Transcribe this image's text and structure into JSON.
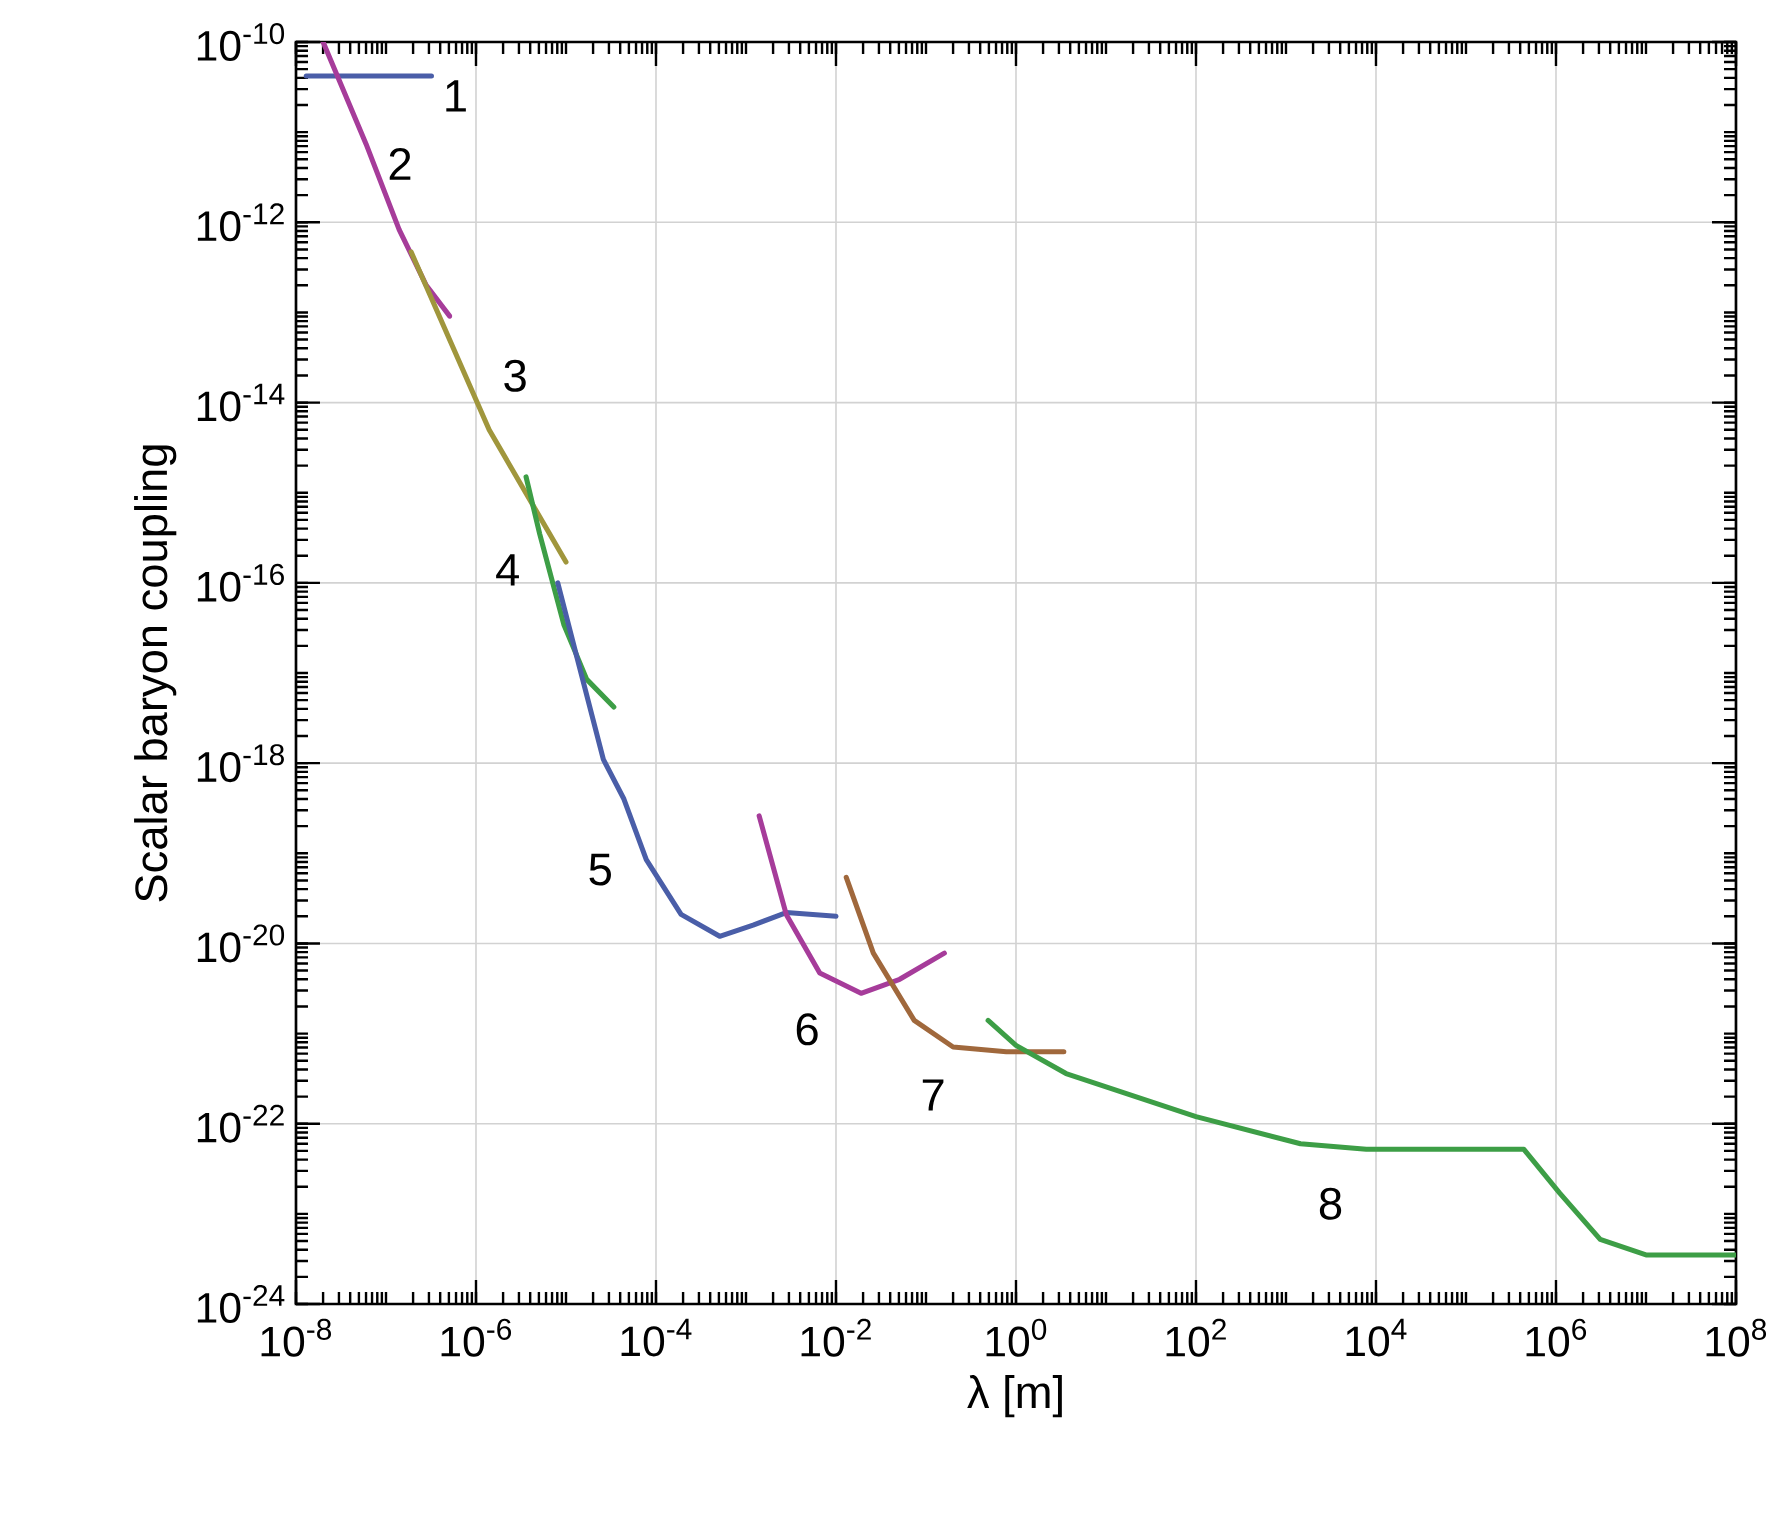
{
  "chart_data": {
    "type": "line",
    "xlabel": "λ [m]",
    "ylabel": "Scalar baryon coupling",
    "log": "xy",
    "grid": true,
    "legend": false,
    "line_style": "solid",
    "marker": "none",
    "xlim": [
      1e-08,
      100000000.0
    ],
    "ylim": [
      1e-24,
      1e-10
    ],
    "xticks": [
      {
        "value": 1e-08,
        "label": "10$^{-8}$"
      },
      {
        "value": 1e-06,
        "label": "10$^{-6}$"
      },
      {
        "value": 0.0001,
        "label": "10$^{-4}$"
      },
      {
        "value": 0.01,
        "label": "10$^{-2}$"
      },
      {
        "value": 1,
        "label": "10$^{0}$"
      },
      {
        "value": 100.0,
        "label": "10$^{2}$"
      },
      {
        "value": 10000.0,
        "label": "10$^{4}$"
      },
      {
        "value": 1000000.0,
        "label": "10$^{6}$"
      },
      {
        "value": 100000000.0,
        "label": "10$^{8}$"
      }
    ],
    "yticks": [
      {
        "value": 1e-24,
        "label": "10$^{-24}$"
      },
      {
        "value": 1e-22,
        "label": "10$^{-22}$"
      },
      {
        "value": 1e-20,
        "label": "10$^{-20}$"
      },
      {
        "value": 1e-18,
        "label": "10$^{-18}$"
      },
      {
        "value": 1e-16,
        "label": "10$^{-16}$"
      },
      {
        "value": 1e-14,
        "label": "10$^{-14}$"
      },
      {
        "value": 1e-12,
        "label": "10$^{-12}$"
      },
      {
        "value": 1e-10,
        "label": "10$^{-10}$"
      }
    ],
    "series": [
      {
        "name": "1",
        "color": "#4a5ea8",
        "x": [
          1.3e-08,
          3.2e-07
        ],
        "values": [
          4.2e-11,
          4.2e-11
        ]
      },
      {
        "name": "2",
        "color": "#a63c9a",
        "x": [
          2e-08,
          6e-08,
          1.4e-07,
          2.8e-07,
          5.1e-07
        ],
        "values": [
          1e-10,
          7.4e-12,
          8.3e-13,
          2e-13,
          9.1e-14
        ]
      },
      {
        "name": "3",
        "color": "#a0963c",
        "x": [
          1.9e-07,
          1.4e-06,
          1e-05
        ],
        "values": [
          4.7e-13,
          5e-15,
          1.7e-16
        ]
      },
      {
        "name": "4",
        "color": "#3d9e46",
        "x": [
          3.6e-06,
          5.1e-06,
          9.5e-06,
          1.7e-05,
          3.4e-05
        ],
        "values": [
          1.5e-15,
          3.5e-16,
          3.4e-17,
          8.5e-18,
          4.2e-18
        ]
      },
      {
        "name": "5",
        "color": "#4a5ea8",
        "x": [
          8.1e-06,
          1.4e-05,
          2.6e-05,
          4.4e-05,
          7.8e-05,
          0.00019,
          0.00051,
          0.0012,
          0.0028,
          0.01
        ],
        "values": [
          1e-16,
          1.2e-17,
          1.1e-18,
          4e-19,
          8.5e-20,
          2.1e-20,
          1.2e-20,
          1.6e-20,
          2.2e-20,
          2e-20
        ]
      },
      {
        "name": "6",
        "color": "#a63c9a",
        "x": [
          0.0014,
          0.0028,
          0.0066,
          0.019,
          0.051,
          0.16
        ],
        "values": [
          2.6e-19,
          2.1e-20,
          4.7e-21,
          2.8e-21,
          4e-21,
          7.8e-21
        ]
      },
      {
        "name": "7",
        "color": "#a0683c",
        "x": [
          0.013,
          0.026,
          0.074,
          0.2,
          0.78,
          3.4
        ],
        "values": [
          5.4e-20,
          7.8e-21,
          1.4e-21,
          7.1e-22,
          6.3e-22,
          6.3e-22
        ]
      },
      {
        "name": "8",
        "color": "#3d9e46",
        "x": [
          0.49,
          1,
          3.6,
          100,
          1450,
          7800,
          440000.0,
          1100000.0,
          3100000.0,
          10000000.0,
          100000000.0
        ],
        "values": [
          1.4e-21,
          7.4e-22,
          3.6e-22,
          1.2e-22,
          6e-23,
          5.2e-23,
          5.2e-23,
          1.7e-23,
          5.2e-24,
          3.5e-24,
          3.5e-24
        ]
      }
    ]
  }
}
